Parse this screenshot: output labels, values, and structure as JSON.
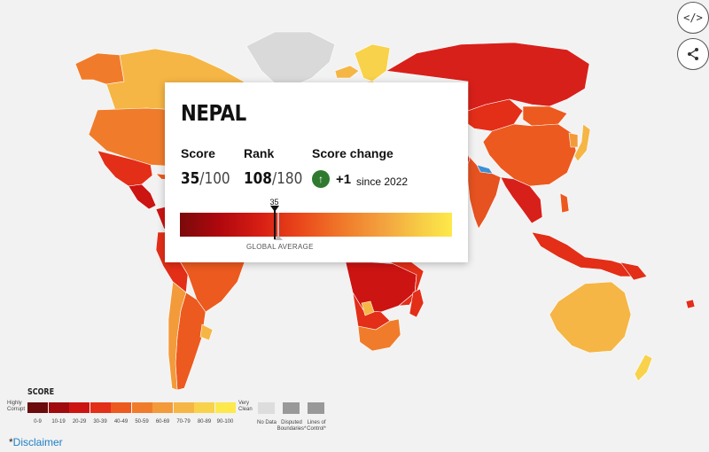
{
  "controls": {
    "embed_label": "</>",
    "share_icon": "share-icon"
  },
  "tooltip": {
    "country": "NEPAL",
    "score_label": "Score",
    "score_value": "35",
    "score_max": "/100",
    "rank_label": "Rank",
    "rank_value": "108",
    "rank_max": "/180",
    "change_label": "Score change",
    "change_value": "+1",
    "change_since": "since 2022",
    "marker_value": "35",
    "score_fraction": 0.35,
    "global_avg_label": "GLOBAL AVERAGE"
  },
  "legend": {
    "title": "SCORE",
    "highly_corrupt": "Highly Corrupt",
    "very_clean": "Very Clean",
    "ranges": [
      {
        "label": "0-9",
        "color": "#6b0b0b"
      },
      {
        "label": "10-19",
        "color": "#a00a0f"
      },
      {
        "label": "20-29",
        "color": "#cc1412"
      },
      {
        "label": "30-39",
        "color": "#e32e18"
      },
      {
        "label": "40-49",
        "color": "#ec5a1f"
      },
      {
        "label": "50-59",
        "color": "#f07c2b"
      },
      {
        "label": "60-69",
        "color": "#f39a3a"
      },
      {
        "label": "70-79",
        "color": "#f5b645"
      },
      {
        "label": "80-89",
        "color": "#f8d24a"
      },
      {
        "label": "90-100",
        "color": "#fde94c"
      }
    ],
    "no_data": "No Data",
    "disputed": "Disputed Boundaries*",
    "lines_of_control": "Lines of Control*"
  },
  "disclaimer": {
    "star": "*",
    "label": "Disclaimer"
  },
  "colors": {
    "highlight": "#3b8fd6",
    "no_data": "#d9d9d9",
    "ocean": "#f2f2f2"
  }
}
